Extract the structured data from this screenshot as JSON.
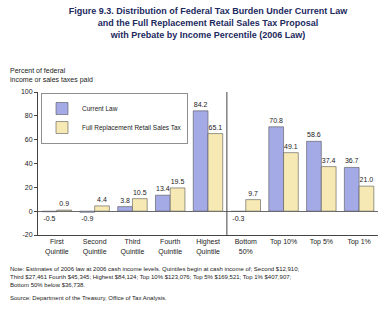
{
  "chart_data": {
    "type": "bar",
    "title": [
      "Figure 9.3. Distribution of Federal Tax Burden Under Current Law",
      "and the Full Replacement Retail Sales Tax Proposal",
      "with Prebate by Income Percentile (2006 Law)"
    ],
    "y_label": [
      "Percent of federal",
      "income or sales taxes paid"
    ],
    "categories": [
      "First Quintile",
      "Second Quintile",
      "Third Quintile",
      "Fourth Quintile",
      "Highest Quintile",
      "Bottom 50%",
      "Top 10%",
      "Top 5%",
      "Top 1%"
    ],
    "series": [
      {
        "name": "Current Law",
        "color": "#a4aae6",
        "values": [
          -0.5,
          -0.9,
          3.8,
          13.4,
          84.2,
          -0.3,
          70.8,
          58.6,
          36.7
        ],
        "value_labels": [
          "-0.5",
          "-0.9",
          "3.8",
          "13.4",
          "84.2",
          "-0.3",
          "70.8",
          "58.6",
          "36.7"
        ]
      },
      {
        "name": "Full Replacement Retail Sales Tax",
        "color": "#f7e9b3",
        "values": [
          0.9,
          4.4,
          10.5,
          19.5,
          65.1,
          9.7,
          49.1,
          37.4,
          21.0
        ],
        "value_labels": [
          "0.9",
          "4.4",
          "10.5",
          "19.5",
          "65.1",
          "9.7",
          "49.1",
          "37.4",
          "21.0"
        ]
      }
    ],
    "ylim": [
      -20,
      100
    ],
    "yticks": [
      -20,
      0,
      20,
      40,
      60,
      80,
      100
    ],
    "grid": false,
    "legend": "upper left",
    "data_labels": true,
    "note": [
      "Note: Estimates of 2006 law at 2006 cash income levels. Quintiles begin at cash income of; Second $12,910;",
      "Third $27,461 Fourth $45,345; Highest $84,124; Top 10% $123,076; Top 5% $169,521; Top 1% $407,907;",
      "Bottom 50% below $36,738."
    ],
    "source": "Source: Department of the Treasury, Office of Tax Analysis."
  }
}
